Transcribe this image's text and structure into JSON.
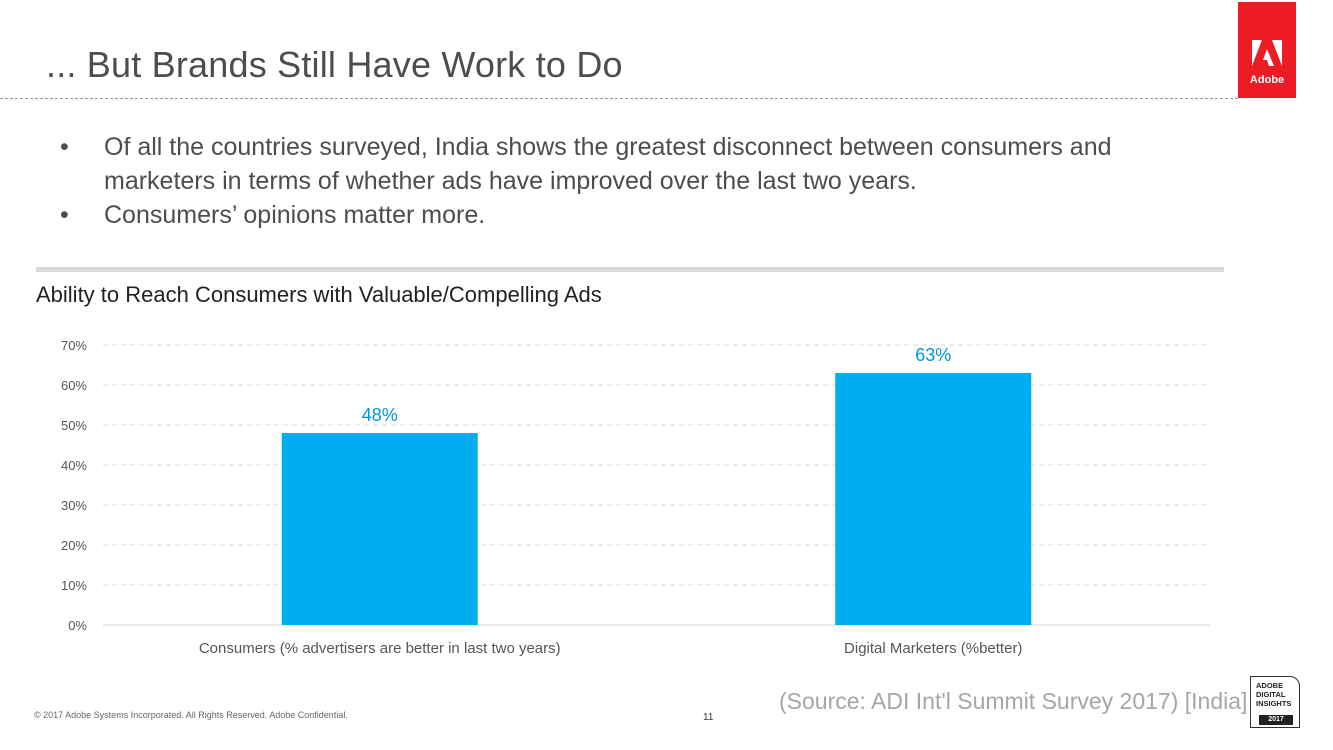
{
  "slide": {
    "title": "... But Brands Still Have Work to Do",
    "bullets": [
      "Of all the countries surveyed, India shows the greatest disconnect between consumers and marketers in terms of whether ads have improved over the last two years.",
      "Consumers’ opinions matter more."
    ],
    "bullet_symbol": "•"
  },
  "logo": {
    "icon": "adobe-logo-icon",
    "word": "Adobe",
    "color": "#ed1c24"
  },
  "chart_data": {
    "type": "bar",
    "title": "Ability to Reach Consumers with Valuable/Compelling Ads",
    "categories": [
      "Consumers (% advertisers are better in last two years)",
      "Digital Marketers (%better)"
    ],
    "values": [
      48,
      63
    ],
    "data_labels": [
      "48%",
      "63%"
    ],
    "ylim": [
      0,
      70
    ],
    "yticks": [
      "0%",
      "10%",
      "20%",
      "30%",
      "40%",
      "50%",
      "60%",
      "70%"
    ],
    "grid": true,
    "bar_color": "#00adef",
    "label_color": "#0096d6"
  },
  "footer": {
    "copyright": "© 2017 Adobe Systems Incorporated.  All Rights Reserved.  Adobe Confidential.",
    "page_number": "11",
    "source": "(Source: ADI Int'l Summit Survey 2017) [India]",
    "badge": {
      "lines": [
        "ADOBE",
        "DIGITAL",
        "INSIGHTS"
      ],
      "year": "2017"
    }
  }
}
